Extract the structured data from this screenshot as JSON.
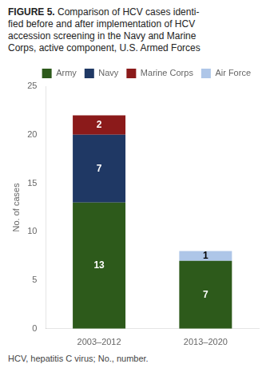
{
  "chart_data": {
    "type": "bar",
    "title": "FIGURE 5. Comparison of HCV cases identi-\nfied before and after implementation of HCV\naccession screening in the Navy and Marine\nCorps, active component, U.S. Armed Forces",
    "categories": [
      "2003–2012",
      "2013–2020"
    ],
    "series": [
      {
        "name": "Army",
        "color": "#2d5a1b",
        "values": [
          13,
          7
        ]
      },
      {
        "name": "Navy",
        "color": "#1f3864",
        "values": [
          7,
          0
        ]
      },
      {
        "name": "Marine Corps",
        "color": "#8b1a1a",
        "values": [
          2,
          0
        ]
      },
      {
        "name": "Air Force",
        "color": "#aec6e8",
        "values": [
          0,
          1
        ]
      }
    ],
    "ylabel": "No. of cases",
    "ylim": [
      0,
      25
    ],
    "yticks": [
      0,
      5,
      10,
      15,
      20,
      25
    ],
    "stacked": true,
    "data_labels": true,
    "grid": false,
    "legend": "upper right",
    "annotations": [
      "HCV, hepatitis C virus; No., number."
    ]
  }
}
